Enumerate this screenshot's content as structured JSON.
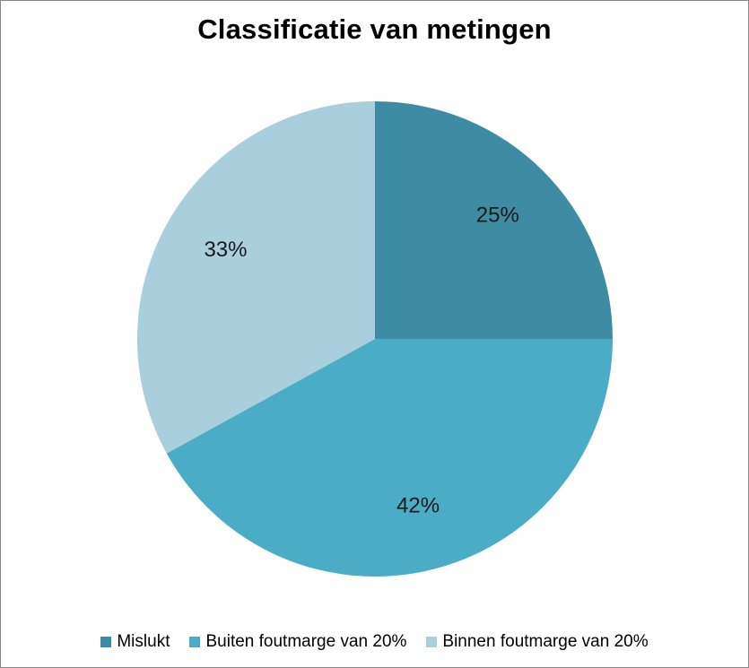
{
  "chart_data": {
    "type": "pie",
    "title": "Classificatie van metingen",
    "categories": [
      "Mislukt",
      "Buiten foutmarge van 20%",
      "Binnen foutmarge van 20%"
    ],
    "values": [
      25,
      42,
      33
    ],
    "labels": [
      "25%",
      "42%",
      "33%"
    ],
    "colors": [
      "#3D8CA3",
      "#4BACC6",
      "#A9CEDC"
    ],
    "legend_position": "bottom",
    "start_angle": "12 o'clock",
    "direction": "clockwise"
  }
}
